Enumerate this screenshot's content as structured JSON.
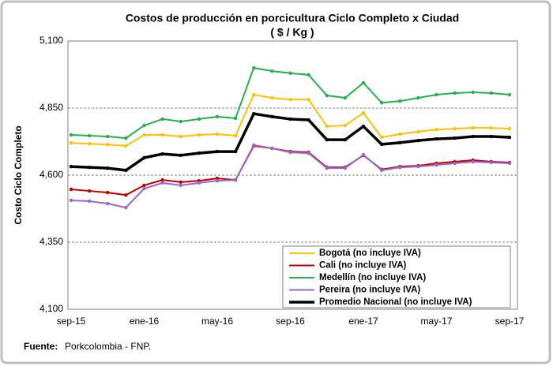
{
  "chart_data": {
    "type": "line",
    "title": "Costos de producción  en porcicultura Ciclo Completo x Ciudad",
    "subtitle": "( $ / Kg )",
    "y_label": "Costo Ciclo  Completo",
    "source_label": "Fuente:",
    "source": "Porkcolombia - FNP.",
    "categories": [
      "sep-15",
      null,
      null,
      null,
      "ene-16",
      null,
      null,
      null,
      "may-16",
      null,
      null,
      null,
      "sep-16",
      null,
      null,
      null,
      "ene-17",
      null,
      null,
      null,
      "may-17",
      null,
      null,
      null,
      "sep-17"
    ],
    "ylim": [
      4100,
      5100
    ],
    "yticks": [
      {
        "value": 4100,
        "label": "4,100"
      },
      {
        "value": 4350,
        "label": "4,350"
      },
      {
        "value": 4600,
        "label": "4,600"
      },
      {
        "value": 4850,
        "label": "4,850"
      },
      {
        "value": 5100,
        "label": "5,100"
      }
    ],
    "grid": true,
    "legend": "lower right",
    "series": [
      {
        "name": "Bogotá (no incluye IVA)",
        "color": "#ffc000",
        "values": [
          4720,
          4717,
          4714,
          4709,
          4750,
          4750,
          4744,
          4750,
          4753,
          4747,
          4900,
          4888,
          4882,
          4882,
          4782,
          4785,
          4832,
          4741,
          4753,
          4762,
          4770,
          4773,
          4776,
          4776,
          4773
        ]
      },
      {
        "name": "Cali (no incluye IVA)",
        "color": "#c00000",
        "values": [
          4547,
          4541,
          4535,
          4526,
          4562,
          4582,
          4574,
          4579,
          4588,
          4582,
          4709,
          4700,
          4688,
          4685,
          4629,
          4629,
          4674,
          4621,
          4632,
          4635,
          4644,
          4650,
          4656,
          4650,
          4647
        ]
      },
      {
        "name": "Medellín (no incluye IVA)",
        "color": "#22b14c",
        "values": [
          4750,
          4747,
          4744,
          4738,
          4785,
          4809,
          4800,
          4809,
          4818,
          4812,
          5000,
          4988,
          4980,
          4974,
          4897,
          4888,
          4944,
          4870,
          4876,
          4888,
          4900,
          4906,
          4909,
          4906,
          4900
        ]
      },
      {
        "name": "Pereira (no incluye IVA)",
        "color": "#9966cc",
        "values": [
          4506,
          4503,
          4494,
          4479,
          4550,
          4571,
          4562,
          4571,
          4579,
          4582,
          4712,
          4700,
          4685,
          4682,
          4626,
          4626,
          4676,
          4618,
          4629,
          4632,
          4638,
          4644,
          4650,
          4647,
          4644
        ]
      },
      {
        "name": "Promedio Nacional (no incluye IVA)",
        "color": "#000000",
        "values": [
          4632,
          4629,
          4626,
          4618,
          4665,
          4679,
          4674,
          4682,
          4688,
          4688,
          4829,
          4818,
          4809,
          4806,
          4732,
          4732,
          4782,
          4715,
          4721,
          4729,
          4735,
          4738,
          4744,
          4744,
          4741
        ]
      }
    ]
  }
}
